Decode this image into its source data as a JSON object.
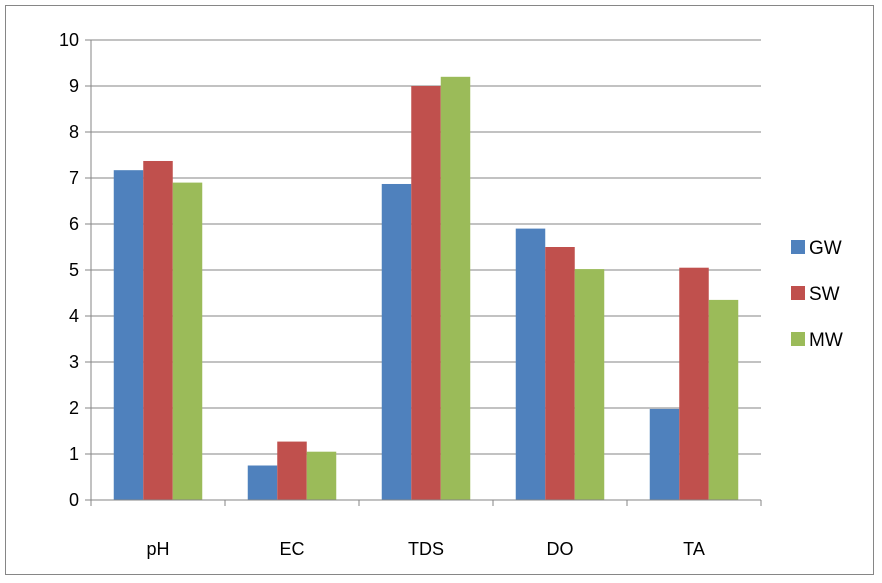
{
  "chart_data": {
    "type": "bar",
    "title": "",
    "xlabel": "",
    "ylabel": "",
    "categories": [
      "pH",
      "EC",
      "TDS",
      "DO",
      "TA"
    ],
    "series": [
      {
        "name": "GW",
        "color": "#4F81BD",
        "values": [
          7.17,
          0.75,
          6.87,
          5.9,
          1.98
        ]
      },
      {
        "name": "SW",
        "color": "#C0504D",
        "values": [
          7.37,
          1.27,
          9.0,
          5.5,
          5.05
        ]
      },
      {
        "name": "MW",
        "color": "#9BBB59",
        "values": [
          6.9,
          1.05,
          9.2,
          5.02,
          4.35
        ]
      }
    ],
    "ylim": [
      0,
      10
    ],
    "yticks": [
      "0",
      "1",
      "2",
      "3",
      "4",
      "5",
      "6",
      "7",
      "8",
      "9",
      "10"
    ],
    "grid": true,
    "legend_position": "right"
  }
}
